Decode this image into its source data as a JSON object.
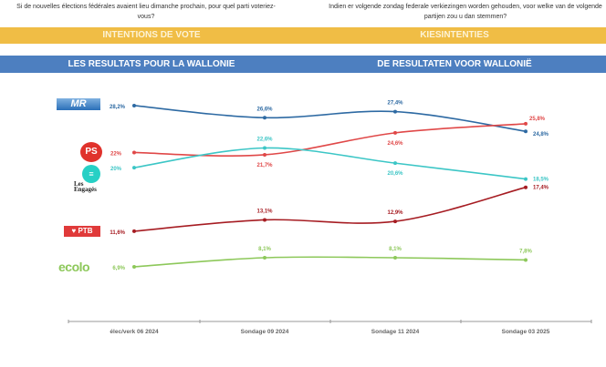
{
  "header": {
    "question_fr": "Si de nouvelles élections fédérales avaient lieu dimanche prochain, pour quel parti voteriez-vous?",
    "question_nl": "Indien er volgende zondag federale verkiezingen worden gehouden, voor welke van de volgende partijen zou u dan stemmen?",
    "band1_fr": "INTENTIONS DE VOTE",
    "band1_nl": "KIESINTENTIES",
    "band2_fr": "LES RESULTATS POUR LA WALLONIE",
    "band2_nl": "DE RESULTATEN VOOR WALLONIË"
  },
  "chart_data": {
    "type": "line",
    "categories": [
      "élec/verk 06 2024",
      "Sondage 09 2024",
      "Sondage 11 2024",
      "Sondage 03 2025"
    ],
    "ylim": [
      0,
      30
    ],
    "grid": false,
    "series": [
      {
        "name": "MR",
        "color": "#2e6aa3",
        "values": [
          28.2,
          26.6,
          27.4,
          24.8
        ],
        "labels": [
          "28,2%",
          "26,6%",
          "27,4%",
          "24,8%"
        ]
      },
      {
        "name": "PS",
        "color": "#e04848",
        "values": [
          22,
          21.7,
          24.6,
          25.8
        ],
        "labels": [
          "22%",
          "21,7%",
          "24,6%",
          "25,8%"
        ]
      },
      {
        "name": "Les Engagés",
        "color": "#3cc6c6",
        "values": [
          20,
          22.6,
          20.6,
          18.5
        ],
        "labels": [
          "20%",
          "22,6%",
          "20,6%",
          "18,5%"
        ]
      },
      {
        "name": "PTB",
        "color": "#a61c22",
        "values": [
          11.6,
          13.1,
          12.9,
          17.4
        ],
        "labels": [
          "11,6%",
          "13,1%",
          "12,9%",
          "17,4%"
        ]
      },
      {
        "name": "ECOLO",
        "color": "#8dc85a",
        "values": [
          6.9,
          8.1,
          8.1,
          7.8
        ],
        "labels": [
          "6,9%",
          "8,1%",
          "8,1%",
          "7,8%"
        ]
      }
    ]
  }
}
